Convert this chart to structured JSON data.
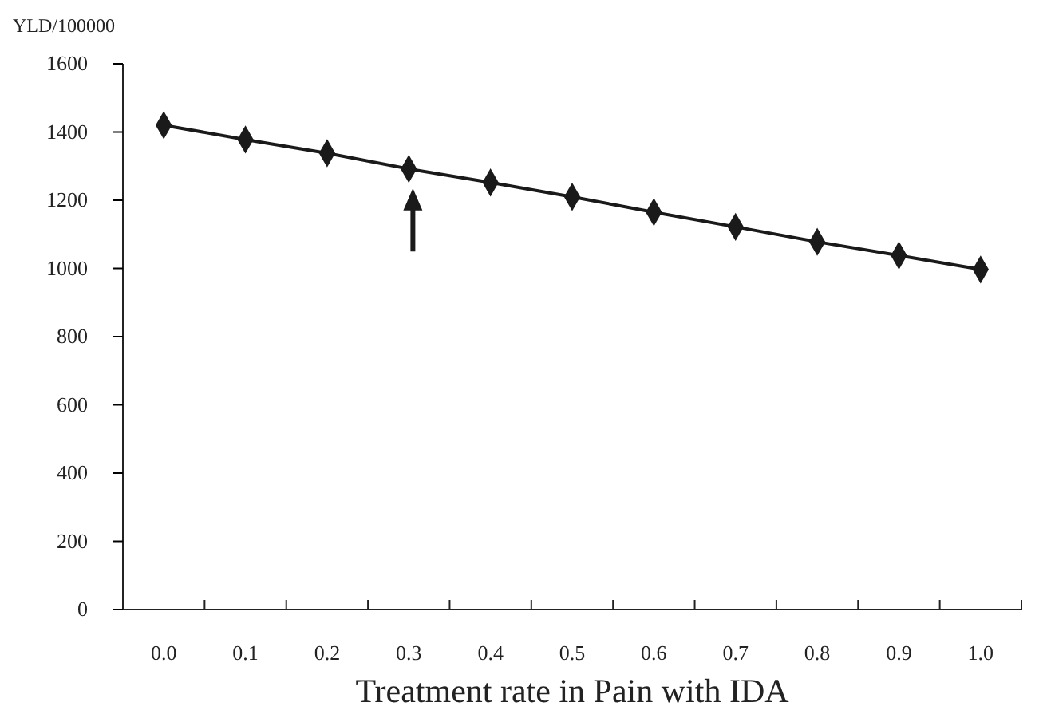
{
  "chart_data": {
    "type": "line",
    "ylabel": "YLD/100000",
    "xlabel": "Treatment rate in Pain with IDA",
    "categories": [
      "0.0",
      "0.1",
      "0.2",
      "0.3",
      "0.4",
      "0.5",
      "0.6",
      "0.7",
      "0.8",
      "0.9",
      "1.0"
    ],
    "series": [
      {
        "color": "#1a1a1a",
        "values": [
          1420,
          1378,
          1338,
          1292,
          1252,
          1210,
          1165,
          1122,
          1078,
          1038,
          997
        ]
      }
    ],
    "ylim": [
      0,
      1600
    ],
    "yticks": [
      0,
      200,
      400,
      600,
      800,
      1000,
      1200,
      1400,
      1600
    ],
    "marker": "diamond",
    "line_style": "solid",
    "grid": false,
    "legend": false
  }
}
